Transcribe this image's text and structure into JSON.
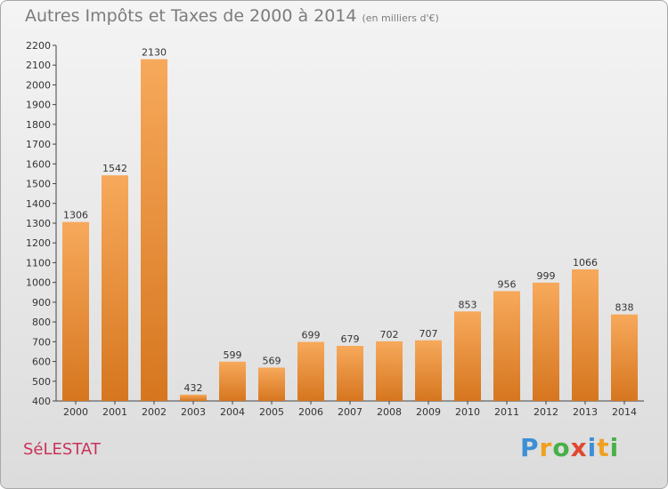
{
  "title": "Autres Impôts et Taxes de 2000 à 2014",
  "subtitle": "(en milliers d'€)",
  "city": "SéLESTAT",
  "logo": {
    "text": "Proxiti",
    "letters": [
      {
        "ch": "P",
        "color": "#3d8fd6"
      },
      {
        "ch": "r",
        "color": "#f0a020"
      },
      {
        "ch": "o",
        "color": "#48b048"
      },
      {
        "ch": "x",
        "color": "#e04830"
      },
      {
        "ch": "i",
        "color": "#3d8fd6"
      },
      {
        "ch": "t",
        "color": "#f0a020"
      },
      {
        "ch": "i",
        "color": "#48b048"
      }
    ]
  },
  "colors": {
    "bar_top": "#f7a95b",
    "bar_bottom": "#d6761f",
    "title": "#7c7c7c",
    "city": "#c8345a"
  },
  "chart_data": {
    "type": "bar",
    "categories": [
      "2000",
      "2001",
      "2002",
      "2003",
      "2004",
      "2005",
      "2006",
      "2007",
      "2008",
      "2009",
      "2010",
      "2011",
      "2012",
      "2013",
      "2014"
    ],
    "values": [
      1306,
      1542,
      2130,
      432,
      599,
      569,
      699,
      679,
      702,
      707,
      853,
      956,
      999,
      1066,
      838
    ],
    "ylim": [
      400,
      2200
    ],
    "yticks": [
      400,
      500,
      600,
      700,
      800,
      900,
      1000,
      1100,
      1200,
      1300,
      1400,
      1500,
      1600,
      1700,
      1800,
      1900,
      2000,
      2100,
      2200
    ],
    "grid": false,
    "legend": "none"
  }
}
